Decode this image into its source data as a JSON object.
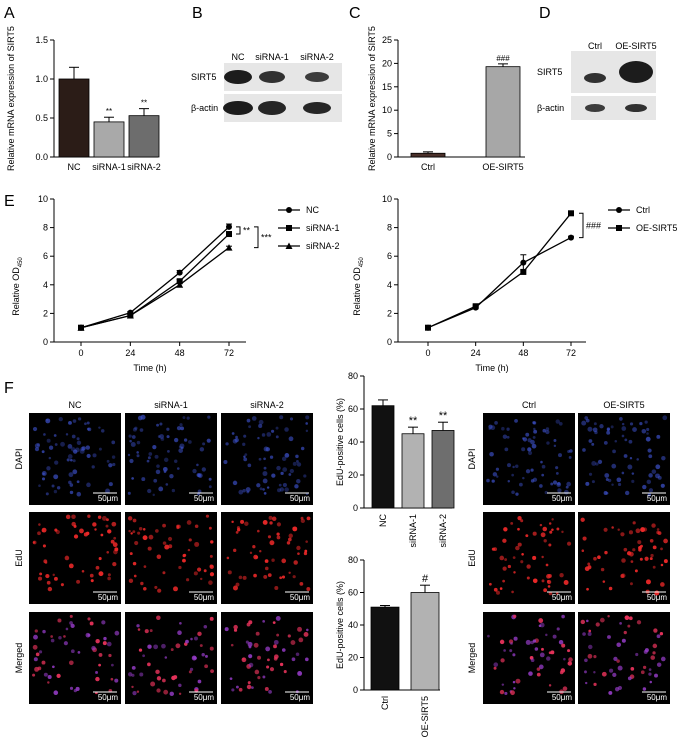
{
  "panel_labels": {
    "A": "A",
    "B": "B",
    "C": "C",
    "D": "D",
    "E": "E",
    "F": "F"
  },
  "colors": {
    "nc": "#2b1c17",
    "sirna1": "#a9a9a9",
    "sirna2": "#6d6d6d",
    "ctrl": "#4a302a",
    "oe": "#a7a7a7",
    "edu_black": "#111111",
    "edu_gray_light": "#b2b2b2",
    "edu_gray_dark": "#6e6e6e"
  },
  "blots": {
    "B": {
      "columns": [
        "NC",
        "siRNA-1",
        "siRNA-2"
      ],
      "rows": [
        "SIRT5",
        "β-actin"
      ]
    },
    "D": {
      "columns": [
        "Ctrl",
        "OE-SIRT5"
      ],
      "rows": [
        "SIRT5",
        "β-actin"
      ]
    }
  },
  "micrographs": {
    "left_columns": [
      "NC",
      "siRNA-1",
      "siRNA-2"
    ],
    "right_columns": [
      "Ctrl",
      "OE-SIRT5"
    ],
    "rows": [
      "DAPI",
      "EdU",
      "Merged"
    ],
    "scale_bar": "50μm"
  },
  "chart_data": [
    {
      "id": "A",
      "type": "bar",
      "categories": [
        "NC",
        "siRNA-1",
        "siRNA-2"
      ],
      "values": [
        1.0,
        0.45,
        0.53
      ],
      "errors": [
        0.15,
        0.06,
        0.09
      ],
      "sig": [
        "",
        "**",
        "**"
      ],
      "ylabel": "Relative mRNA expression of SIRT5",
      "ylim": [
        0,
        1.5
      ],
      "yticks": [
        0.0,
        0.5,
        1.0,
        1.5
      ],
      "ytick_labels": [
        "0.0",
        "0.5",
        "1.0",
        "1.5"
      ]
    },
    {
      "id": "C",
      "type": "bar",
      "categories": [
        "Ctrl",
        "OE-SIRT5"
      ],
      "values": [
        0.8,
        19.3
      ],
      "errors": [
        0.3,
        0.6
      ],
      "sig": [
        "",
        "###"
      ],
      "ylabel": "Relative mRNA expression of SIRT5",
      "ylim": [
        0,
        25
      ],
      "yticks": [
        0,
        5,
        10,
        15,
        20,
        25
      ],
      "ytick_labels": [
        "0",
        "5",
        "10",
        "15",
        "20",
        "25"
      ]
    },
    {
      "id": "E1",
      "type": "line",
      "x": [
        0,
        24,
        48,
        72
      ],
      "xticks": [
        0,
        24,
        48,
        72
      ],
      "xtick_labels": [
        "0",
        "24",
        "48",
        "72"
      ],
      "xlabel": "Time (h)",
      "ylabel": "Relative OD",
      "ylim": [
        0,
        10
      ],
      "yticks": [
        0,
        2,
        4,
        6,
        8,
        10
      ],
      "ytick_labels": [
        "0",
        "2",
        "4",
        "6",
        "8",
        "10"
      ],
      "series": [
        {
          "name": "NC",
          "marker": "circle",
          "values": [
            1.0,
            2.05,
            4.85,
            8.05
          ],
          "errors": [
            0,
            0.08,
            0.15,
            0.2
          ]
        },
        {
          "name": "siRNA-1",
          "marker": "square",
          "values": [
            1.0,
            1.85,
            4.25,
            7.55
          ],
          "errors": [
            0,
            0.08,
            0.12,
            0.15
          ]
        },
        {
          "name": "siRNA-2",
          "marker": "triangle",
          "values": [
            1.0,
            1.85,
            4.0,
            6.6
          ],
          "errors": [
            0,
            0.08,
            0.12,
            0.1
          ]
        }
      ],
      "sig": [
        "**",
        "***"
      ]
    },
    {
      "id": "E2",
      "type": "line",
      "x": [
        0,
        24,
        48,
        72
      ],
      "xticks": [
        0,
        24,
        48,
        72
      ],
      "xtick_labels": [
        "0",
        "24",
        "48",
        "72"
      ],
      "xlabel": "Time (h)",
      "ylabel": "Relative OD",
      "ylim": [
        0,
        10
      ],
      "yticks": [
        0,
        2,
        4,
        6,
        8,
        10
      ],
      "ytick_labels": [
        "0",
        "2",
        "4",
        "6",
        "8",
        "10"
      ],
      "series": [
        {
          "name": "Ctrl",
          "marker": "circle",
          "values": [
            1.0,
            2.4,
            5.55,
            7.3
          ],
          "errors": [
            0,
            0.08,
            0.55,
            0.1
          ]
        },
        {
          "name": "OE-SIRT5",
          "marker": "square",
          "values": [
            1.0,
            2.5,
            4.9,
            9.0
          ],
          "errors": [
            0,
            0.08,
            0.15,
            0.1
          ]
        }
      ],
      "sig": [
        "###"
      ]
    },
    {
      "id": "F1",
      "type": "bar",
      "categories": [
        "NC",
        "siRNA-1",
        "siRNA-2"
      ],
      "values": [
        62,
        45,
        47
      ],
      "errors": [
        3.5,
        4,
        5
      ],
      "sig": [
        "",
        "**",
        "**"
      ],
      "ylabel": "EdU-positive cells (%)",
      "ylim": [
        0,
        80
      ],
      "yticks": [
        0,
        20,
        40,
        60,
        80
      ],
      "ytick_labels": [
        "0",
        "20",
        "40",
        "60",
        "80"
      ]
    },
    {
      "id": "F2",
      "type": "bar",
      "categories": [
        "Ctrl",
        "OE-SIRT5"
      ],
      "values": [
        51,
        60
      ],
      "errors": [
        1,
        4.5
      ],
      "sig": [
        "",
        "#"
      ],
      "ylabel": "EdU-positive cells (%)",
      "ylim": [
        0,
        80
      ],
      "yticks": [
        0,
        20,
        40,
        60,
        80
      ],
      "ytick_labels": [
        "0",
        "20",
        "40",
        "60",
        "80"
      ]
    }
  ]
}
